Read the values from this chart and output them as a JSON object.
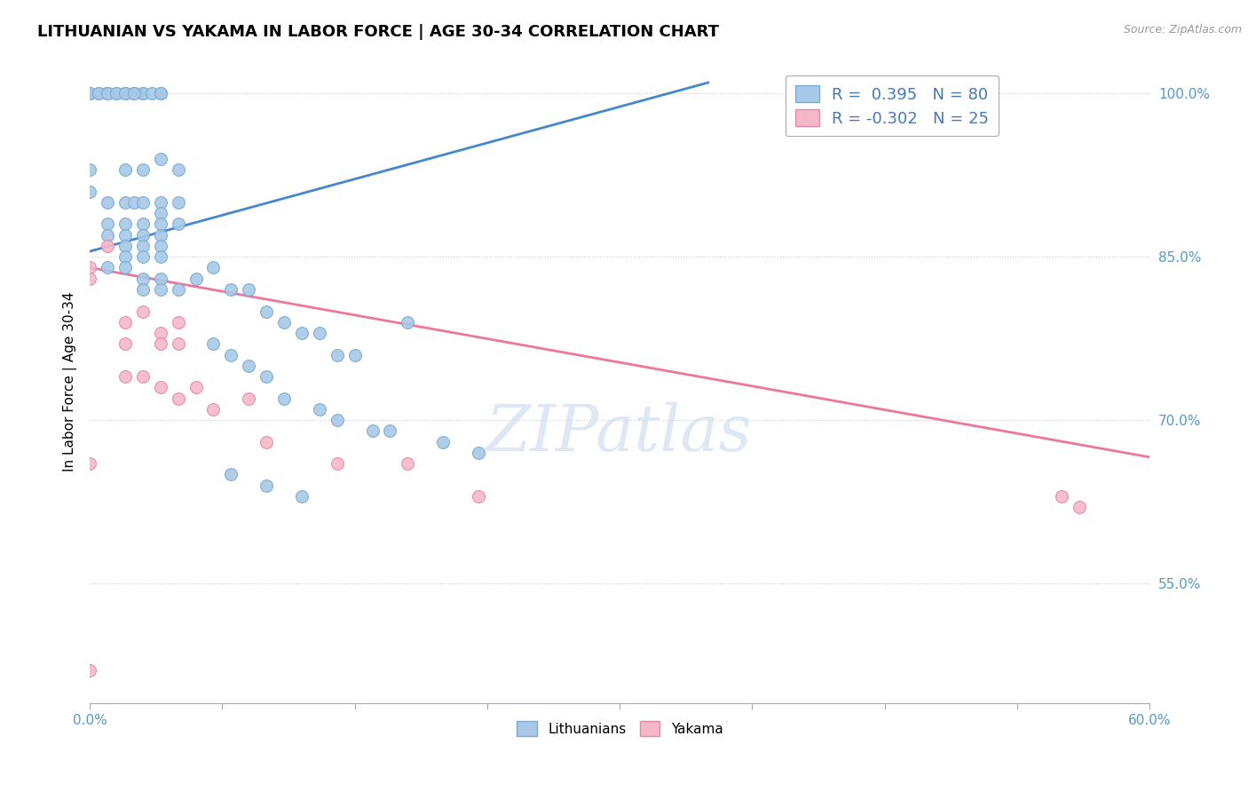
{
  "title": "LITHUANIAN VS YAKAMA IN LABOR FORCE | AGE 30-34 CORRELATION CHART",
  "source_text": "Source: ZipAtlas.com",
  "ylabel": "In Labor Force | Age 30-34",
  "xlim": [
    0.0,
    0.6
  ],
  "ylim": [
    0.44,
    1.03
  ],
  "ytick_labels": [
    "55.0%",
    "70.0%",
    "85.0%",
    "100.0%"
  ],
  "ytick_values": [
    0.55,
    0.7,
    0.85,
    1.0
  ],
  "blue_color": "#a8c8e8",
  "pink_color": "#f4b8c8",
  "blue_edge_color": "#7aaad0",
  "pink_edge_color": "#e888a8",
  "blue_line_color": "#4488cc",
  "pink_line_color": "#ee7799",
  "legend_text_blue": "R =  0.395   N = 80",
  "legend_text_pink": "R = -0.302   N = 25",
  "watermark": "ZIPatlas",
  "blue_trend": [
    0.0,
    0.855,
    0.35,
    1.01
  ],
  "pink_trend": [
    0.0,
    0.84,
    0.6,
    0.666
  ],
  "blue_scatter": [
    [
      0.0,
      1.0
    ],
    [
      0.0,
      1.0
    ],
    [
      0.005,
      1.0
    ],
    [
      0.01,
      1.0
    ],
    [
      0.01,
      1.0
    ],
    [
      0.015,
      1.0
    ],
    [
      0.02,
      1.0
    ],
    [
      0.02,
      1.0
    ],
    [
      0.025,
      1.0
    ],
    [
      0.025,
      1.0
    ],
    [
      0.03,
      1.0
    ],
    [
      0.03,
      1.0
    ],
    [
      0.035,
      1.0
    ],
    [
      0.04,
      1.0
    ],
    [
      0.04,
      1.0
    ],
    [
      0.005,
      1.0
    ],
    [
      0.01,
      1.0
    ],
    [
      0.015,
      1.0
    ],
    [
      0.02,
      1.0
    ],
    [
      0.025,
      1.0
    ],
    [
      0.0,
      0.93
    ],
    [
      0.0,
      0.91
    ],
    [
      0.02,
      0.93
    ],
    [
      0.03,
      0.93
    ],
    [
      0.04,
      0.94
    ],
    [
      0.05,
      0.93
    ],
    [
      0.01,
      0.9
    ],
    [
      0.02,
      0.9
    ],
    [
      0.025,
      0.9
    ],
    [
      0.03,
      0.9
    ],
    [
      0.04,
      0.9
    ],
    [
      0.04,
      0.89
    ],
    [
      0.05,
      0.9
    ],
    [
      0.01,
      0.88
    ],
    [
      0.02,
      0.88
    ],
    [
      0.03,
      0.88
    ],
    [
      0.04,
      0.88
    ],
    [
      0.05,
      0.88
    ],
    [
      0.01,
      0.87
    ],
    [
      0.02,
      0.87
    ],
    [
      0.03,
      0.87
    ],
    [
      0.04,
      0.87
    ],
    [
      0.02,
      0.86
    ],
    [
      0.03,
      0.86
    ],
    [
      0.04,
      0.86
    ],
    [
      0.02,
      0.85
    ],
    [
      0.03,
      0.85
    ],
    [
      0.04,
      0.85
    ],
    [
      0.01,
      0.84
    ],
    [
      0.02,
      0.84
    ],
    [
      0.03,
      0.83
    ],
    [
      0.04,
      0.83
    ],
    [
      0.03,
      0.82
    ],
    [
      0.04,
      0.82
    ],
    [
      0.05,
      0.82
    ],
    [
      0.06,
      0.83
    ],
    [
      0.07,
      0.84
    ],
    [
      0.08,
      0.82
    ],
    [
      0.09,
      0.82
    ],
    [
      0.1,
      0.8
    ],
    [
      0.11,
      0.79
    ],
    [
      0.12,
      0.78
    ],
    [
      0.13,
      0.78
    ],
    [
      0.14,
      0.76
    ],
    [
      0.15,
      0.76
    ],
    [
      0.07,
      0.77
    ],
    [
      0.08,
      0.76
    ],
    [
      0.09,
      0.75
    ],
    [
      0.1,
      0.74
    ],
    [
      0.11,
      0.72
    ],
    [
      0.13,
      0.71
    ],
    [
      0.14,
      0.7
    ],
    [
      0.16,
      0.69
    ],
    [
      0.17,
      0.69
    ],
    [
      0.2,
      0.68
    ],
    [
      0.22,
      0.67
    ],
    [
      0.08,
      0.65
    ],
    [
      0.1,
      0.64
    ],
    [
      0.12,
      0.63
    ],
    [
      0.18,
      0.79
    ]
  ],
  "pink_scatter": [
    [
      0.0,
      0.84
    ],
    [
      0.0,
      0.83
    ],
    [
      0.01,
      0.86
    ],
    [
      0.02,
      0.79
    ],
    [
      0.02,
      0.77
    ],
    [
      0.03,
      0.8
    ],
    [
      0.04,
      0.78
    ],
    [
      0.04,
      0.77
    ],
    [
      0.05,
      0.79
    ],
    [
      0.05,
      0.77
    ],
    [
      0.02,
      0.74
    ],
    [
      0.03,
      0.74
    ],
    [
      0.04,
      0.73
    ],
    [
      0.05,
      0.72
    ],
    [
      0.06,
      0.73
    ],
    [
      0.07,
      0.71
    ],
    [
      0.09,
      0.72
    ],
    [
      0.1,
      0.68
    ],
    [
      0.14,
      0.66
    ],
    [
      0.18,
      0.66
    ],
    [
      0.55,
      0.63
    ],
    [
      0.56,
      0.62
    ],
    [
      0.0,
      0.66
    ],
    [
      0.0,
      0.47
    ],
    [
      0.22,
      0.63
    ]
  ]
}
